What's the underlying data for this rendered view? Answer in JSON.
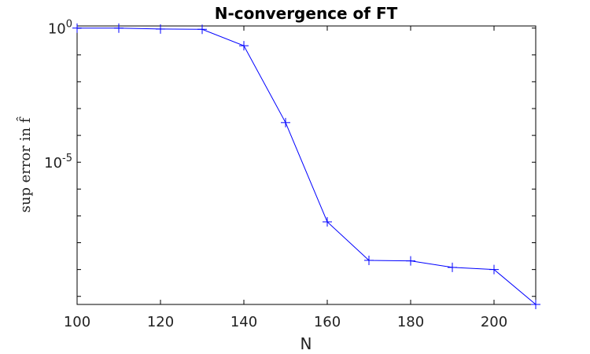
{
  "chart_data": {
    "type": "line",
    "title": "N-convergence of FT",
    "xlabel": "N",
    "ylabel": "sup error in f̂",
    "xlim": [
      100,
      210
    ],
    "xticks": [
      100,
      120,
      140,
      160,
      180,
      200
    ],
    "xtick_labels": [
      "100",
      "120",
      "140",
      "160",
      "180",
      "200"
    ],
    "yscale": "log",
    "ylim": [
      5e-11,
      1.2
    ],
    "yticks": [
      {
        "value": 1,
        "base": "10",
        "exp": "0"
      },
      {
        "value": 1e-05,
        "base": "10",
        "exp": "-5"
      }
    ],
    "grid": false,
    "series": [
      {
        "color": "#0000ff",
        "marker": "plus",
        "x": [
          100,
          110,
          120,
          130,
          140,
          150,
          160,
          170,
          180,
          190,
          200,
          210
        ],
        "y": [
          1.0,
          1.0,
          0.92,
          0.9,
          0.22,
          0.0003,
          6e-08,
          2.2e-09,
          2.1e-09,
          1.2e-09,
          1e-09,
          5e-11
        ]
      }
    ]
  }
}
